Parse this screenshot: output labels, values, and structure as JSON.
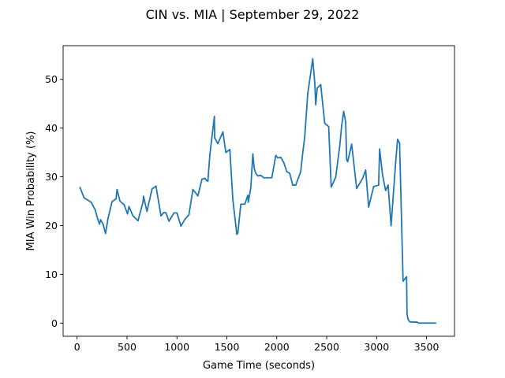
{
  "chart_data": {
    "type": "line",
    "title": "CIN vs. MIA | September 29, 2022",
    "xlabel": "Game Time (seconds)",
    "ylabel": "MIA Win Probability (%)",
    "xlim": [
      -140,
      3780
    ],
    "ylim": [
      -2.7,
      56.9
    ],
    "xticks": [
      0,
      500,
      1000,
      1500,
      2000,
      2500,
      3000,
      3500
    ],
    "yticks": [
      0,
      10,
      20,
      30,
      40,
      50
    ],
    "grid": false,
    "color": "#1f77b4",
    "series": [
      {
        "x": [
          30,
          70,
          140,
          180,
          210,
          225,
          235,
          260,
          285,
          310,
          350,
          390,
          400,
          430,
          470,
          505,
          520,
          560,
          610,
          660,
          665,
          700,
          750,
          790,
          840,
          870,
          890,
          920,
          970,
          1000,
          1040,
          1080,
          1110,
          1120,
          1160,
          1210,
          1250,
          1280,
          1300,
          1310,
          1330,
          1375,
          1378,
          1410,
          1460,
          1490,
          1530,
          1560,
          1600,
          1610,
          1640,
          1680,
          1710,
          1715,
          1740,
          1760,
          1775,
          1790,
          1810,
          1840,
          1870,
          1950,
          1990,
          2010,
          2040,
          2070,
          2100,
          2130,
          2160,
          2190,
          2240,
          2260,
          2280,
          2310,
          2360,
          2380,
          2390,
          2405,
          2440,
          2480,
          2520,
          2545,
          2590,
          2630,
          2650,
          2670,
          2690,
          2700,
          2710,
          2750,
          2800,
          2860,
          2890,
          2920,
          2970,
          3020,
          3030,
          3060,
          3090,
          3115,
          3145,
          3190,
          3210,
          3220,
          3230,
          3265,
          3300,
          3305,
          3315,
          3330,
          3355,
          3390,
          3400,
          3405,
          3420,
          3470,
          3490,
          3500,
          3590
        ],
        "y": [
          27.8,
          25.7,
          24.8,
          23.3,
          21.1,
          20.3,
          21.2,
          20.3,
          18.4,
          21.5,
          24.9,
          25.5,
          27.4,
          25.0,
          24.3,
          22.4,
          23.9,
          22.0,
          21.0,
          24.8,
          26.0,
          22.9,
          27.5,
          28.1,
          22.0,
          22.7,
          22.6,
          20.9,
          22.6,
          22.6,
          19.9,
          21.3,
          22.0,
          22.2,
          27.4,
          26.1,
          29.5,
          29.7,
          29.2,
          29.1,
          34.6,
          42.4,
          38.0,
          36.8,
          39.2,
          35.0,
          35.6,
          25.3,
          18.2,
          18.5,
          24.4,
          24.4,
          26.2,
          24.8,
          27.8,
          34.7,
          31.6,
          30.7,
          30.2,
          30.3,
          29.8,
          29.8,
          34.4,
          33.9,
          34.0,
          32.9,
          31.1,
          30.7,
          28.3,
          28.3,
          31.1,
          34.9,
          38.2,
          47.0,
          54.2,
          49.4,
          44.8,
          48.2,
          48.9,
          41.0,
          40.3,
          27.9,
          29.9,
          36.2,
          40.5,
          43.4,
          41.2,
          33.5,
          33.1,
          36.7,
          27.6,
          29.7,
          31.4,
          23.8,
          28.0,
          28.3,
          35.7,
          30.3,
          27.2,
          28.3,
          20.0,
          32.8,
          37.7,
          37.3,
          36.9,
          8.6,
          9.5,
          1.8,
          0.8,
          0.3,
          0.2,
          0.2,
          0.2,
          0.2,
          0.0,
          0.0,
          0.0,
          0.0,
          0.0
        ]
      }
    ]
  }
}
